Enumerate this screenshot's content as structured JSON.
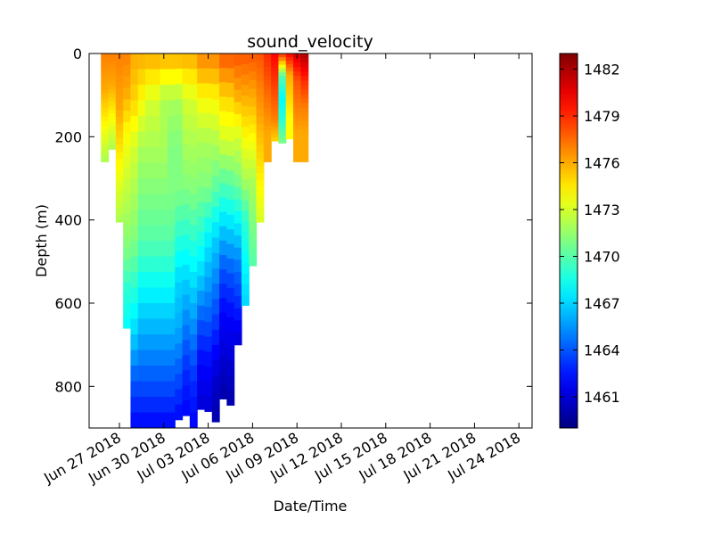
{
  "chart_data": {
    "type": "heatmap",
    "title": "sound_velocity",
    "xlabel": "Date/Time",
    "ylabel": "Depth (m)",
    "x_ticks": [
      "Jun 27 2018",
      "Jun 30 2018",
      "Jul 03 2018",
      "Jul 06 2018",
      "Jul 09 2018",
      "Jul 12 2018",
      "Jul 15 2018",
      "Jul 18 2018",
      "Jul 21 2018",
      "Jul 24 2018"
    ],
    "xlim": [
      "2018-06-26",
      "2018-07-25"
    ],
    "y_ticks": [
      0,
      200,
      400,
      600,
      800
    ],
    "ylim": [
      900,
      0
    ],
    "y_inverted": true,
    "colormap": "jet",
    "colorbar": {
      "label": "",
      "range": [
        1459,
        1483
      ],
      "ticks": [
        1461,
        1464,
        1467,
        1470,
        1473,
        1476,
        1479,
        1482
      ]
    },
    "profiles": [
      {
        "date": "2018-06-26",
        "max_depth": 260,
        "values": [
          1477,
          1476.5,
          1476,
          1475,
          1474,
          1473,
          1472
        ]
      },
      {
        "date": "2018-06-26.5",
        "max_depth": 230,
        "values": [
          1477,
          1476.5,
          1476,
          1475,
          1474,
          1473,
          1472
        ]
      },
      {
        "date": "2018-06-27",
        "max_depth": 405,
        "values": [
          1477,
          1476.5,
          1476,
          1475,
          1474,
          1473,
          1472
        ]
      },
      {
        "date": "2018-06-27.5",
        "max_depth": 660,
        "values": [
          1477,
          1476,
          1474,
          1473,
          1472,
          1471,
          1469,
          1468
        ]
      },
      {
        "date": "2018-06-28",
        "max_depth": 900,
        "values": [
          1476,
          1475,
          1473,
          1472,
          1471,
          1469,
          1467,
          1464,
          1462
        ]
      },
      {
        "date": "2018-06-28.5",
        "max_depth": 900,
        "values": [
          1476,
          1474,
          1472,
          1471,
          1470,
          1468,
          1466,
          1464,
          1462
        ]
      },
      {
        "date": "2018-06-29",
        "max_depth": 900,
        "values": [
          1476,
          1473,
          1472,
          1471,
          1470,
          1468,
          1466,
          1464,
          1462
        ]
      },
      {
        "date": "2018-06-29.5",
        "max_depth": 900,
        "values": [
          1476,
          1473,
          1472,
          1471,
          1470,
          1468,
          1466,
          1464,
          1462
        ]
      },
      {
        "date": "2018-06-30",
        "max_depth": 900,
        "values": [
          1476,
          1472,
          1472,
          1471,
          1470,
          1468,
          1466,
          1464,
          1462
        ]
      },
      {
        "date": "2018-06-30.5",
        "max_depth": 900,
        "values": [
          1476,
          1472,
          1471,
          1471,
          1470,
          1468,
          1466,
          1464,
          1462
        ]
      },
      {
        "date": "2018-07-01",
        "max_depth": 880,
        "values": [
          1476,
          1472,
          1471,
          1471,
          1469,
          1467,
          1466,
          1464,
          1462
        ]
      },
      {
        "date": "2018-07-01.5",
        "max_depth": 870,
        "values": [
          1476,
          1473,
          1472,
          1471,
          1469,
          1467,
          1465,
          1463,
          1462
        ]
      },
      {
        "date": "2018-07-02",
        "max_depth": 900,
        "values": [
          1476,
          1473,
          1472,
          1471,
          1469,
          1467,
          1465,
          1463,
          1462
        ]
      },
      {
        "date": "2018-07-02.5",
        "max_depth": 855,
        "values": [
          1477,
          1474,
          1472,
          1471,
          1469,
          1467,
          1464,
          1462,
          1461
        ]
      },
      {
        "date": "2018-07-03",
        "max_depth": 860,
        "values": [
          1477,
          1474,
          1472,
          1471,
          1468,
          1466,
          1464,
          1462,
          1461
        ]
      },
      {
        "date": "2018-07-03.5",
        "max_depth": 885,
        "values": [
          1477,
          1474,
          1472,
          1470,
          1467,
          1465,
          1463,
          1461,
          1460
        ]
      },
      {
        "date": "2018-07-04",
        "max_depth": 830,
        "values": [
          1478,
          1475,
          1473,
          1470,
          1467,
          1464,
          1462,
          1461,
          1460
        ]
      },
      {
        "date": "2018-07-04.5",
        "max_depth": 845,
        "values": [
          1478,
          1475,
          1473,
          1470,
          1467,
          1464,
          1462,
          1461,
          1460
        ]
      },
      {
        "date": "2018-07-05",
        "max_depth": 700,
        "values": [
          1478,
          1476,
          1473,
          1471,
          1468,
          1465,
          1463,
          1461
        ]
      },
      {
        "date": "2018-07-05.5",
        "max_depth": 605,
        "values": [
          1478,
          1476,
          1474,
          1472,
          1469,
          1468,
          1467
        ]
      },
      {
        "date": "2018-07-06",
        "max_depth": 510,
        "values": [
          1478,
          1476,
          1474,
          1472,
          1471,
          1470
        ]
      },
      {
        "date": "2018-07-06.5",
        "max_depth": 405,
        "values": [
          1478,
          1477,
          1476,
          1475,
          1474,
          1473
        ]
      },
      {
        "date": "2018-07-07",
        "max_depth": 260,
        "values": [
          1479,
          1478,
          1477,
          1476,
          1476
        ]
      },
      {
        "date": "2018-07-07.5",
        "max_depth": 210,
        "values": [
          1480,
          1479,
          1478,
          1477,
          1475
        ]
      },
      {
        "date": "2018-07-08",
        "max_depth": 215,
        "values": [
          1479,
          1470,
          1468,
          1469,
          1471
        ]
      },
      {
        "date": "2018-07-08.5",
        "max_depth": 205,
        "values": [
          1480,
          1476,
          1475,
          1474,
          1474
        ]
      },
      {
        "date": "2018-07-09",
        "max_depth": 260,
        "values": [
          1481,
          1478,
          1477,
          1476,
          1476
        ]
      },
      {
        "date": "2018-07-09.5",
        "max_depth": 260,
        "values": [
          1482,
          1479,
          1477,
          1476,
          1476
        ]
      }
    ]
  }
}
